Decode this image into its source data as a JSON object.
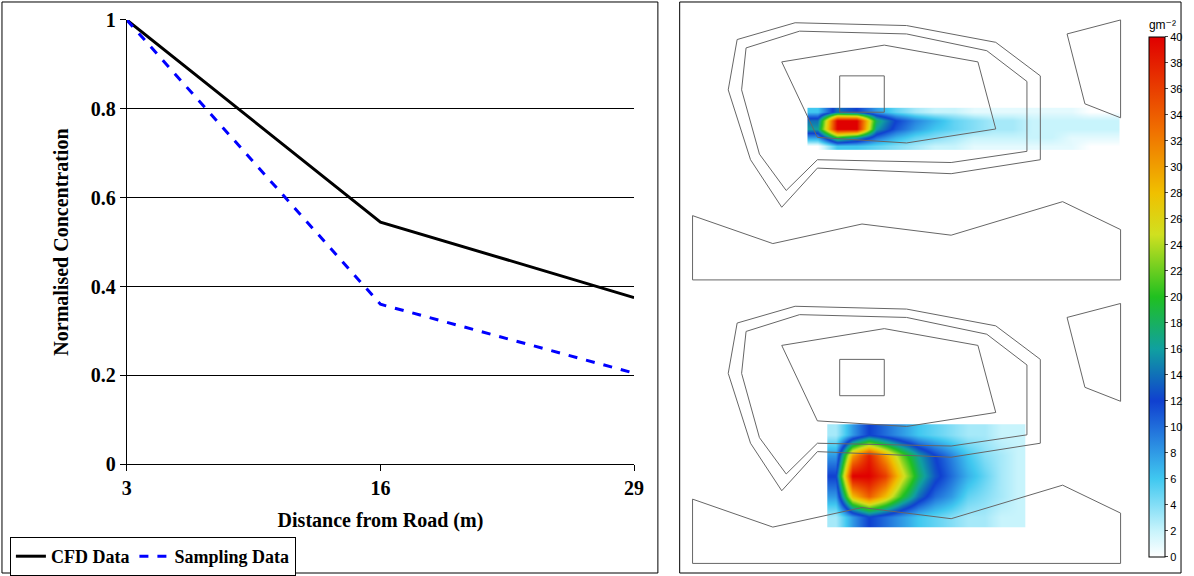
{
  "chart_data": [
    {
      "type": "line",
      "x_label": "Distance from Road (m)",
      "y_label": "Normalised Concentration",
      "x": [
        3,
        16,
        29
      ],
      "xlim": [
        3,
        29
      ],
      "xticks": [
        3,
        16,
        29
      ],
      "ylim": [
        0,
        1
      ],
      "yticks": [
        0,
        0.2,
        0.4,
        0.6,
        0.8,
        1
      ],
      "grid": true,
      "legend": "bottom",
      "series": [
        {
          "name": "CFD Data",
          "color": "#000000",
          "line_style": "solid",
          "values": [
            1,
            0.545,
            0.375
          ]
        },
        {
          "name": "Sampling Data",
          "color": "#0000ff",
          "line_style": "dash",
          "values": [
            1,
            0.36,
            0.205
          ]
        }
      ]
    },
    {
      "type": "heatmap",
      "colorbar": {
        "title": "gm⁻²",
        "zlim": [
          0,
          40
        ],
        "zticks": [
          0,
          2,
          4,
          6,
          8,
          10,
          12,
          14,
          16,
          18,
          20,
          22,
          24,
          26,
          28,
          30,
          32,
          34,
          36,
          38,
          40
        ]
      },
      "cells": [
        [
          6,
          14,
          12,
          8,
          5,
          3,
          2,
          2,
          1,
          1,
          1,
          1,
          1,
          1,
          0,
          0
        ],
        [
          14,
          40,
          40,
          18,
          12,
          9,
          7,
          5,
          4,
          3,
          3,
          2,
          2,
          2,
          2,
          2
        ],
        [
          16,
          40,
          40,
          16,
          11,
          8,
          6,
          5,
          4,
          3,
          3,
          2,
          2,
          2,
          2,
          2
        ],
        [
          8,
          20,
          16,
          10,
          7,
          5,
          4,
          3,
          2,
          2,
          2,
          2,
          2,
          1,
          1,
          1
        ],
        [
          0,
          6,
          6,
          5,
          4,
          3,
          2,
          2,
          1,
          1,
          1,
          1,
          1,
          1,
          0,
          0
        ]
      ]
    },
    {
      "type": "heatmap",
      "cells": [
        [
          3,
          8,
          12,
          10,
          8,
          6,
          5,
          4,
          3,
          3,
          2,
          2
        ],
        [
          8,
          30,
          38,
          30,
          22,
          16,
          12,
          9,
          6,
          4,
          3,
          2
        ],
        [
          12,
          40,
          40,
          36,
          26,
          18,
          13,
          10,
          7,
          5,
          3,
          2
        ],
        [
          8,
          28,
          34,
          28,
          20,
          14,
          10,
          8,
          5,
          4,
          3,
          2
        ],
        [
          3,
          8,
          12,
          10,
          8,
          6,
          5,
          4,
          3,
          3,
          2,
          2
        ]
      ]
    }
  ]
}
